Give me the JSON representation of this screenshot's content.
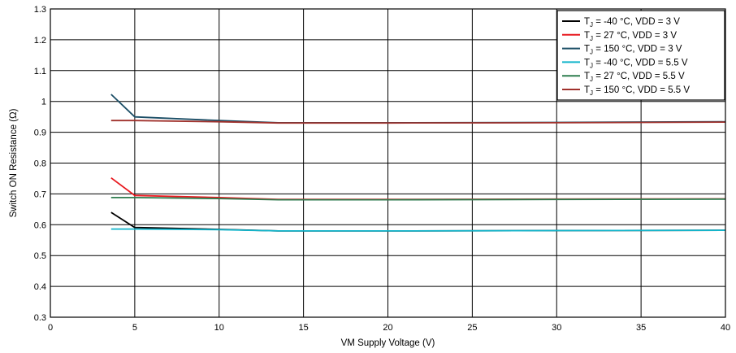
{
  "chart_data": {
    "type": "line",
    "xlabel": "VM Supply Voltage (V)",
    "ylabel": "Switch ON Resistance (Ω)",
    "xlim": [
      0,
      40
    ],
    "ylim": [
      0.3,
      1.3
    ],
    "xticks": [
      0,
      5,
      10,
      15,
      20,
      25,
      30,
      35,
      40
    ],
    "yticks": [
      0.3,
      0.4,
      0.5,
      0.6,
      0.7,
      0.8,
      0.9,
      1.0,
      1.1,
      1.2,
      1.3
    ],
    "xtick_labels": [
      "0",
      "5",
      "10",
      "15",
      "20",
      "25",
      "30",
      "35",
      "40"
    ],
    "ytick_labels": [
      "0.3",
      "0.4",
      "0.5",
      "0.6",
      "0.7",
      "0.8",
      "0.9",
      "1",
      "1.1",
      "1.2",
      "1.3"
    ],
    "grid": true,
    "legend_position": "top-right",
    "series": [
      {
        "name": "TJ = -40 °C, VDD = 3 V",
        "legend_pre": "T",
        "legend_sub": "J",
        "legend_post": " = -40 °C, VDD = 3 V",
        "color": "#000000",
        "x": [
          3.6,
          5,
          10,
          13.5,
          20,
          30,
          40
        ],
        "y": [
          0.64,
          0.591,
          0.585,
          0.58,
          0.58,
          0.581,
          0.582
        ]
      },
      {
        "name": "TJ = 27 °C, VDD = 3 V",
        "legend_pre": "T",
        "legend_sub": "J",
        "legend_post": " = 27 °C, VDD = 3 V",
        "color": "#e8191f",
        "x": [
          3.6,
          5,
          10,
          13.5,
          20,
          30,
          40
        ],
        "y": [
          0.752,
          0.695,
          0.688,
          0.682,
          0.682,
          0.683,
          0.684
        ]
      },
      {
        "name": "TJ = 150 °C, VDD = 3 V",
        "legend_pre": "T",
        "legend_sub": "J",
        "legend_post": " = 150 °C, VDD = 3 V",
        "color": "#1b4e66",
        "x": [
          3.6,
          5,
          10,
          13.5,
          20,
          30,
          40
        ],
        "y": [
          1.023,
          0.95,
          0.938,
          0.931,
          0.931,
          0.932,
          0.934
        ]
      },
      {
        "name": "TJ = -40 °C, VDD = 5.5 V",
        "legend_pre": "T",
        "legend_sub": "J",
        "legend_post": " = -40 °C, VDD = 5.5 V",
        "color": "#12b5cb",
        "x": [
          3.6,
          5,
          10,
          13.5,
          20,
          30,
          40
        ],
        "y": [
          0.586,
          0.586,
          0.584,
          0.58,
          0.58,
          0.581,
          0.582
        ]
      },
      {
        "name": "TJ = 27 °C, VDD = 5.5 V",
        "legend_pre": "T",
        "legend_sub": "J",
        "legend_post": " = 27 °C, VDD = 5.5 V",
        "color": "#2e7d4f",
        "x": [
          3.6,
          5,
          10,
          13.5,
          20,
          30,
          40
        ],
        "y": [
          0.688,
          0.688,
          0.685,
          0.681,
          0.681,
          0.682,
          0.683
        ]
      },
      {
        "name": "TJ = 150 °C, VDD = 5.5 V",
        "legend_pre": "T",
        "legend_sub": "J",
        "legend_post": " = 150 °C, VDD = 5.5 V",
        "color": "#a0312c",
        "x": [
          3.6,
          5,
          10,
          13.5,
          20,
          30,
          40
        ],
        "y": [
          0.938,
          0.938,
          0.934,
          0.93,
          0.93,
          0.931,
          0.933
        ]
      }
    ]
  }
}
